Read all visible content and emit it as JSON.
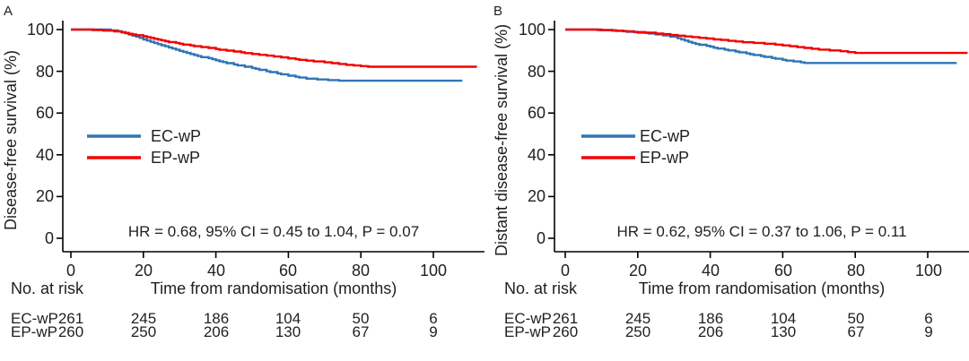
{
  "colors": {
    "ec_wp": "#2e75b6",
    "ep_wp": "#f40000",
    "text": "#1f1f1f",
    "axis": "#000000"
  },
  "chart_data": [
    {
      "type": "line",
      "subtype": "kaplan-meier-step",
      "panel_label": "A",
      "ylabel": "Disease-free survival (%)",
      "xlabel": "Time from randomisation (months)",
      "annotation": "HR = 0.68, 95% CI = 0.45 to 1.04, P = 0.07",
      "xlim": [
        0,
        114
      ],
      "ylim": [
        0,
        100
      ],
      "grid": false,
      "legend_position": "inside-left-middle",
      "x_ticks": [
        0,
        20,
        40,
        60,
        80,
        100
      ],
      "y_ticks": [
        100,
        80,
        60,
        40,
        20,
        0
      ],
      "series": [
        {
          "name": "EC-wP",
          "color": "#2e75b6",
          "end_t": 108,
          "points": [
            [
              0,
              100
            ],
            [
              11,
              99.6
            ],
            [
              13,
              99.2
            ],
            [
              14,
              98.7
            ],
            [
              15,
              98.2
            ],
            [
              16,
              97.6
            ],
            [
              17,
              97.1
            ],
            [
              18,
              96.6
            ],
            [
              19,
              96
            ],
            [
              20,
              95.3
            ],
            [
              21,
              94.7
            ],
            [
              22,
              94.1
            ],
            [
              23,
              93.6
            ],
            [
              24,
              93
            ],
            [
              25,
              92.5
            ],
            [
              26,
              92
            ],
            [
              27,
              91.4
            ],
            [
              28,
              90.9
            ],
            [
              29,
              90.4
            ],
            [
              30,
              89.8
            ],
            [
              31,
              89.3
            ],
            [
              32,
              88.8
            ],
            [
              33,
              88.3
            ],
            [
              34,
              87.8
            ],
            [
              35,
              87.3
            ],
            [
              36,
              86.8
            ],
            [
              38,
              86.3
            ],
            [
              39,
              85.8
            ],
            [
              40,
              85.3
            ],
            [
              41,
              84.8
            ],
            [
              42,
              84.4
            ],
            [
              43,
              83.9
            ],
            [
              45,
              83.3
            ],
            [
              46,
              82.8
            ],
            [
              48,
              82.2
            ],
            [
              50,
              81.6
            ],
            [
              51,
              81.2
            ],
            [
              52,
              80.7
            ],
            [
              54,
              80
            ],
            [
              55,
              79.6
            ],
            [
              57,
              79
            ],
            [
              58,
              78.6
            ],
            [
              60,
              77.9
            ],
            [
              62,
              77.4
            ],
            [
              63,
              77
            ],
            [
              65,
              76.5
            ],
            [
              68,
              76.1
            ],
            [
              71,
              75.8
            ],
            [
              74,
              75.5
            ]
          ]
        },
        {
          "name": "EP-wP",
          "color": "#f40000",
          "end_t": 112,
          "points": [
            [
              0,
              100
            ],
            [
              6,
              99.8
            ],
            [
              9,
              99.5
            ],
            [
              12,
              99.1
            ],
            [
              14,
              98.7
            ],
            [
              15,
              98.4
            ],
            [
              16,
              98
            ],
            [
              17,
              97.7
            ],
            [
              18,
              97.3
            ],
            [
              20,
              96.8
            ],
            [
              21,
              96.4
            ],
            [
              22,
              96
            ],
            [
              23,
              95.6
            ],
            [
              24,
              95.2
            ],
            [
              25,
              94.8
            ],
            [
              26,
              94.4
            ],
            [
              27,
              94
            ],
            [
              29,
              93.6
            ],
            [
              30,
              93.2
            ],
            [
              31,
              92.8
            ],
            [
              33,
              92.4
            ],
            [
              34,
              92
            ],
            [
              36,
              91.6
            ],
            [
              38,
              91.2
            ],
            [
              40,
              90.7
            ],
            [
              41,
              90.3
            ],
            [
              43,
              89.9
            ],
            [
              45,
              89.5
            ],
            [
              47,
              89.1
            ],
            [
              48,
              88.7
            ],
            [
              50,
              88.3
            ],
            [
              52,
              87.9
            ],
            [
              54,
              87.5
            ],
            [
              56,
              87.1
            ],
            [
              58,
              86.7
            ],
            [
              60,
              86.2
            ],
            [
              62,
              85.8
            ],
            [
              63,
              85.5
            ],
            [
              65,
              85.1
            ],
            [
              67,
              84.7
            ],
            [
              70,
              84.3
            ],
            [
              72,
              83.9
            ],
            [
              74,
              83.5
            ],
            [
              76,
              83.1
            ],
            [
              78,
              82.8
            ],
            [
              80,
              82.5
            ],
            [
              82,
              82.2
            ]
          ]
        }
      ],
      "risk_table": {
        "label": "No. at risk",
        "rows": [
          {
            "name": "EC-wP",
            "values": [
              261,
              245,
              186,
              104,
              50,
              6
            ]
          },
          {
            "name": "EP-wP",
            "values": [
              260,
              250,
              206,
              130,
              67,
              9
            ]
          }
        ]
      }
    },
    {
      "type": "line",
      "subtype": "kaplan-meier-step",
      "panel_label": "B",
      "ylabel": "Distant disease-free survival (%)",
      "xlabel": "Time from randomisation (months)",
      "annotation": "HR = 0.62, 95% CI = 0.37 to 1.06, P = 0.11",
      "xlim": [
        0,
        114
      ],
      "ylim": [
        0,
        100
      ],
      "grid": false,
      "legend_position": "inside-left-middle",
      "x_ticks": [
        0,
        20,
        40,
        60,
        80,
        100
      ],
      "y_ticks": [
        100,
        80,
        60,
        40,
        20,
        0
      ],
      "series": [
        {
          "name": "EC-wP",
          "color": "#2e75b6",
          "end_t": 108,
          "points": [
            [
              0,
              100
            ],
            [
              10,
              99.7
            ],
            [
              14,
              99.3
            ],
            [
              17,
              98.9
            ],
            [
              20,
              98.5
            ],
            [
              23,
              98.1
            ],
            [
              25,
              97.7
            ],
            [
              27,
              97.2
            ],
            [
              29,
              96.6
            ],
            [
              31,
              95.9
            ],
            [
              32,
              95.3
            ],
            [
              33,
              94.7
            ],
            [
              34,
              94.1
            ],
            [
              35,
              93.6
            ],
            [
              36,
              93.1
            ],
            [
              37,
              92.7
            ],
            [
              39,
              92.2
            ],
            [
              40,
              91.8
            ],
            [
              41,
              91.3
            ],
            [
              42,
              90.9
            ],
            [
              44,
              90.4
            ],
            [
              45,
              90
            ],
            [
              47,
              89.5
            ],
            [
              48,
              89.1
            ],
            [
              50,
              88.6
            ],
            [
              51,
              88.2
            ],
            [
              52,
              87.8
            ],
            [
              54,
              87.3
            ],
            [
              55,
              86.9
            ],
            [
              57,
              86.4
            ],
            [
              58,
              86
            ],
            [
              60,
              85.5
            ],
            [
              61,
              85.1
            ],
            [
              63,
              84.7
            ],
            [
              65,
              84.3
            ],
            [
              66,
              84
            ]
          ]
        },
        {
          "name": "EP-wP",
          "color": "#f40000",
          "end_t": 111,
          "points": [
            [
              0,
              100
            ],
            [
              9,
              99.8
            ],
            [
              13,
              99.5
            ],
            [
              16,
              99.2
            ],
            [
              19,
              98.8
            ],
            [
              22,
              98.5
            ],
            [
              25,
              98.1
            ],
            [
              27,
              97.8
            ],
            [
              29,
              97.4
            ],
            [
              31,
              97.1
            ],
            [
              33,
              96.7
            ],
            [
              35,
              96.4
            ],
            [
              37,
              96
            ],
            [
              39,
              95.7
            ],
            [
              41,
              95.3
            ],
            [
              43,
              95
            ],
            [
              45,
              94.6
            ],
            [
              47,
              94.3
            ],
            [
              49,
              93.9
            ],
            [
              52,
              93.6
            ],
            [
              55,
              93.2
            ],
            [
              58,
              92.8
            ],
            [
              60,
              92.4
            ],
            [
              62,
              92
            ],
            [
              64,
              91.6
            ],
            [
              66,
              91.2
            ],
            [
              68,
              90.8
            ],
            [
              70,
              90.4
            ],
            [
              73,
              90
            ],
            [
              76,
              89.6
            ],
            [
              78,
              89.2
            ],
            [
              80,
              88.8
            ]
          ]
        }
      ],
      "risk_table": {
        "label": "No. at risk",
        "rows": [
          {
            "name": "EC-wP",
            "values": [
              261,
              245,
              186,
              104,
              50,
              6
            ]
          },
          {
            "name": "EP-wP",
            "values": [
              260,
              250,
              206,
              130,
              67,
              9
            ]
          }
        ]
      }
    }
  ]
}
